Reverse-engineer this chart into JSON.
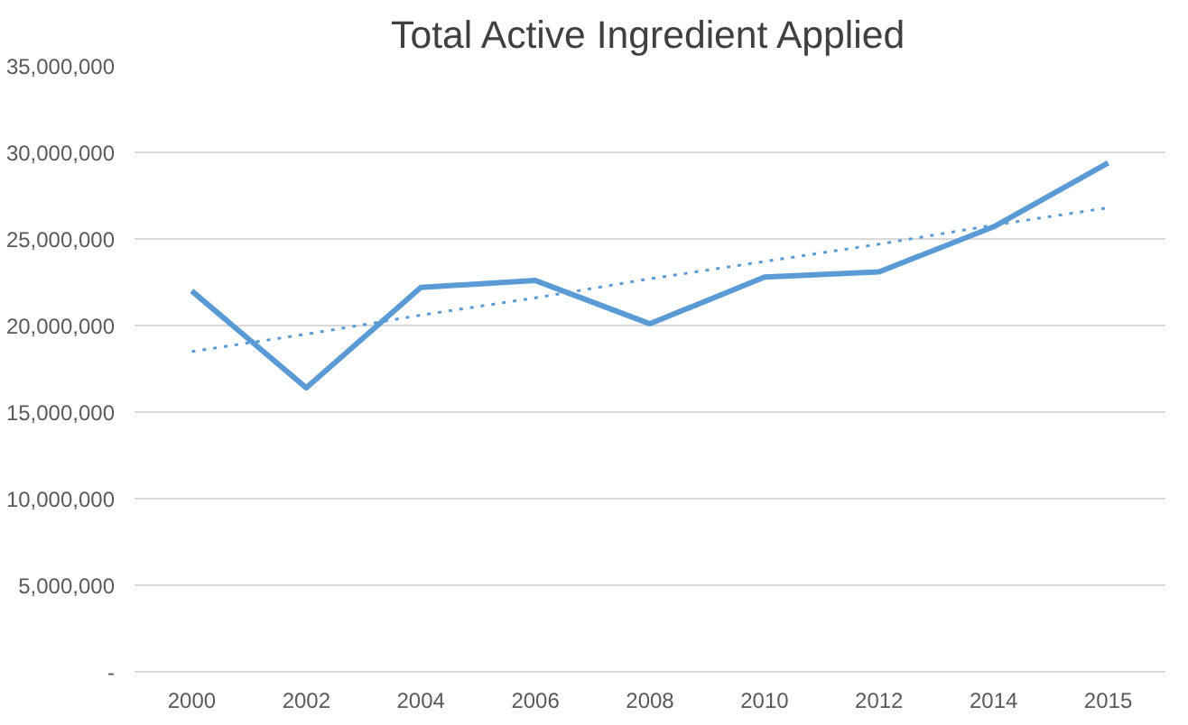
{
  "chart_data": {
    "type": "line",
    "title": "Total Active Ingredient Applied",
    "categories": [
      "2000",
      "2002",
      "2004",
      "2006",
      "2008",
      "2010",
      "2012",
      "2014",
      "2015"
    ],
    "series": [
      {
        "color": "#5b9bd5",
        "values": [
          22000000,
          16400000,
          22200000,
          22600000,
          20100000,
          22800000,
          23100000,
          25700000,
          29400000
        ],
        "line_style": "solid"
      },
      {
        "color": "#5b9bd5",
        "values": [
          18500000,
          19500000,
          20600000,
          21600000,
          22700000,
          23700000,
          24700000,
          25800000,
          26800000
        ],
        "line_style": "dotted"
      }
    ],
    "ylim": [
      0,
      35000000
    ],
    "yticks": [
      {
        "value": 0,
        "label": "-"
      },
      {
        "value": 5000000,
        "label": "5,000,000"
      },
      {
        "value": 10000000,
        "label": "10,000,000"
      },
      {
        "value": 15000000,
        "label": "15,000,000"
      },
      {
        "value": 20000000,
        "label": "20,000,000"
      },
      {
        "value": 25000000,
        "label": "25,000,000"
      },
      {
        "value": 30000000,
        "label": "30,000,000"
      },
      {
        "value": 35000000,
        "label": "35,000,000"
      }
    ],
    "grid": "y",
    "marker": "none"
  }
}
